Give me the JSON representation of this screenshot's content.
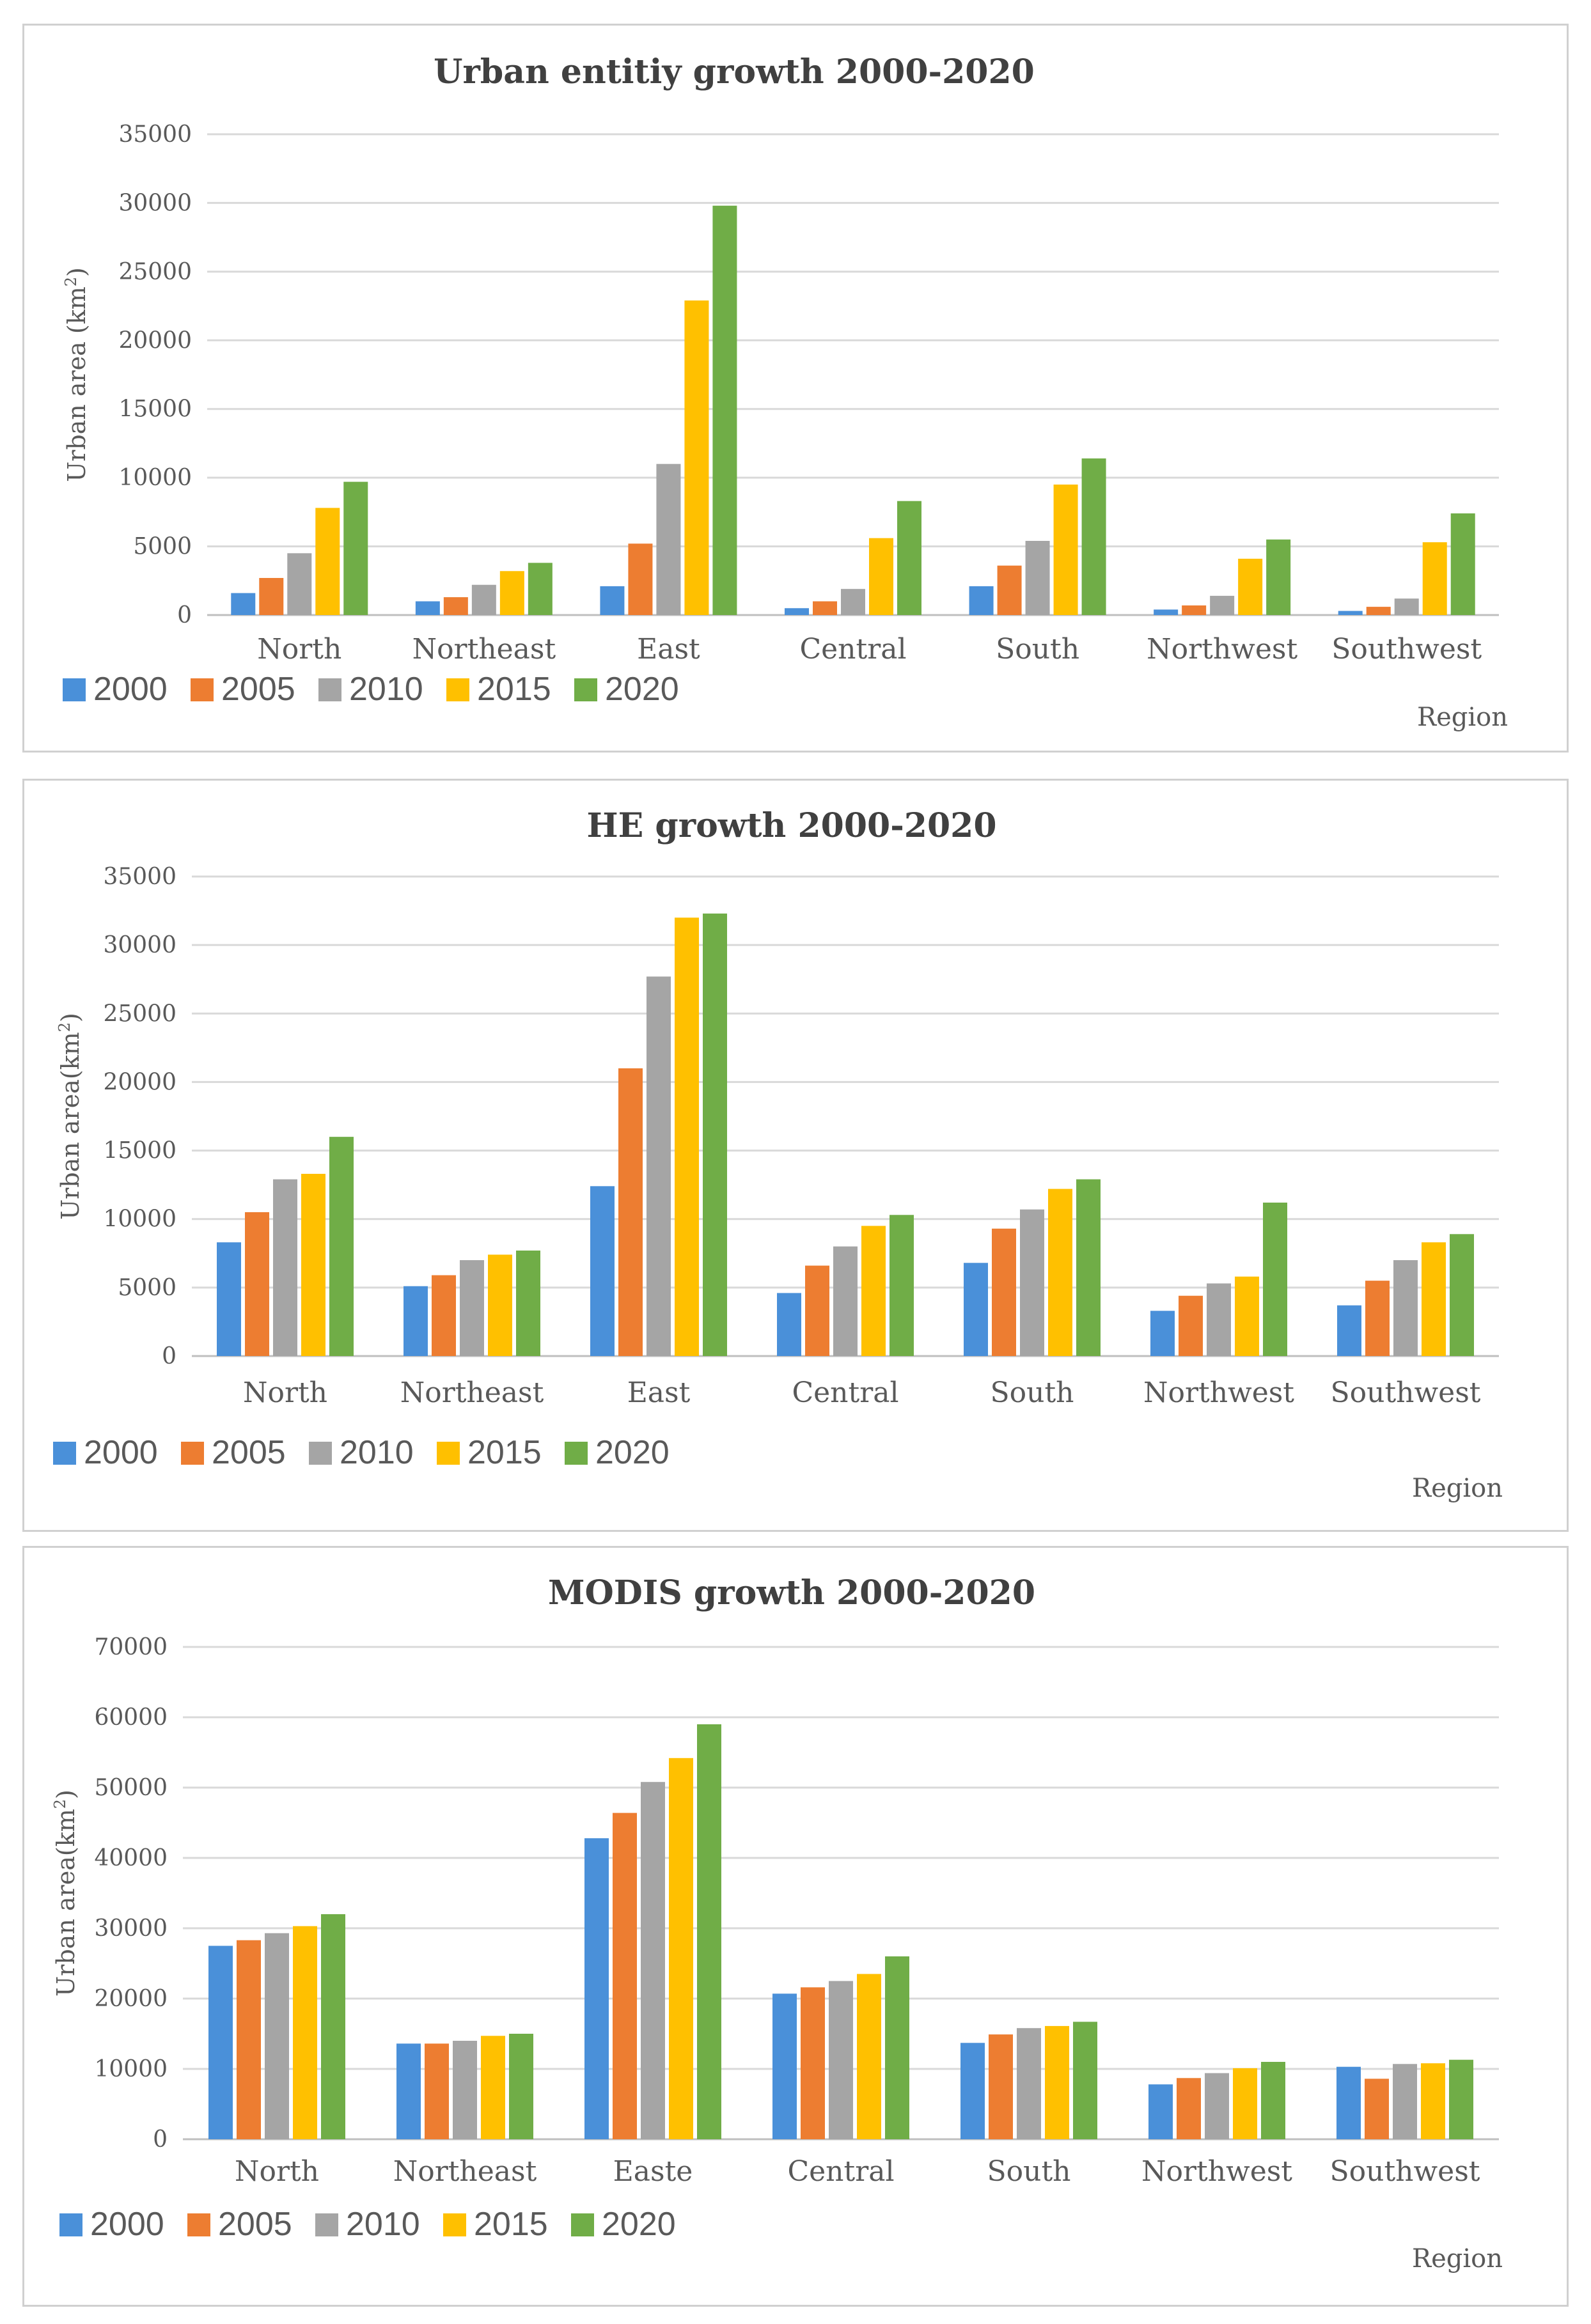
{
  "chart_data": [
    {
      "type": "bar",
      "title": "Urban entitiy growth 2000-2020",
      "ylabel": "Urban area (km",
      "ylabel_sup": "2",
      "ylabel_close": ")",
      "xlabel": "Region",
      "ylim": [
        0,
        35000
      ],
      "yticks": [
        "0",
        "5000",
        "10000",
        "15000",
        "20000",
        "25000",
        "30000",
        "35000"
      ],
      "categories": [
        "North",
        "Northeast",
        "East",
        "Central",
        "South",
        "Northwest",
        "Southwest"
      ],
      "series": [
        {
          "name": "2000",
          "color": "#4a90d9",
          "values": [
            1600,
            1000,
            2100,
            500,
            2100,
            400,
            300
          ]
        },
        {
          "name": "2005",
          "color": "#ed7d31",
          "values": [
            2700,
            1300,
            5200,
            1000,
            3600,
            700,
            600
          ]
        },
        {
          "name": "2010",
          "color": "#a5a5a5",
          "values": [
            4500,
            2200,
            11000,
            1900,
            5400,
            1400,
            1200
          ]
        },
        {
          "name": "2015",
          "color": "#ffc000",
          "values": [
            7800,
            3200,
            22900,
            5600,
            9500,
            4100,
            5300
          ]
        },
        {
          "name": "2020",
          "color": "#70ad47",
          "values": [
            9700,
            3800,
            29800,
            8300,
            11400,
            5500,
            7400
          ]
        }
      ]
    },
    {
      "type": "bar",
      "title": "HE growth 2000-2020",
      "ylabel": "Urban area(km",
      "ylabel_sup": "2",
      "ylabel_close": ")",
      "xlabel": "Region",
      "ylim": [
        0,
        35000
      ],
      "yticks": [
        "0",
        "5000",
        "10000",
        "15000",
        "20000",
        "25000",
        "30000",
        "35000"
      ],
      "categories": [
        "North",
        "Northeast",
        "East",
        "Central",
        "South",
        "Northwest",
        "Southwest"
      ],
      "series": [
        {
          "name": "2000",
          "color": "#4a90d9",
          "values": [
            8300,
            5100,
            12400,
            4600,
            6800,
            3300,
            3700
          ]
        },
        {
          "name": "2005",
          "color": "#ed7d31",
          "values": [
            10500,
            5900,
            21000,
            6600,
            9300,
            4400,
            5500
          ]
        },
        {
          "name": "2010",
          "color": "#a5a5a5",
          "values": [
            12900,
            7000,
            27700,
            8000,
            10700,
            5300,
            7000
          ]
        },
        {
          "name": "2015",
          "color": "#ffc000",
          "values": [
            13300,
            7400,
            32000,
            9500,
            12200,
            5800,
            8300
          ]
        },
        {
          "name": "2020",
          "color": "#70ad47",
          "values": [
            16000,
            7700,
            32300,
            10300,
            12900,
            11200,
            8900
          ]
        }
      ]
    },
    {
      "type": "bar",
      "title": "MODIS growth 2000-2020",
      "ylabel": "Urban area(km",
      "ylabel_sup": "2",
      "ylabel_close": ")",
      "xlabel": "Region",
      "ylim": [
        0,
        70000
      ],
      "yticks": [
        "0",
        "10000",
        "20000",
        "30000",
        "40000",
        "50000",
        "60000",
        "70000"
      ],
      "categories": [
        "North",
        "Northeast",
        "Easte",
        "Central",
        "South",
        "Northwest",
        "Southwest"
      ],
      "series": [
        {
          "name": "2000",
          "color": "#4a90d9",
          "values": [
            27500,
            13600,
            42800,
            20700,
            13700,
            7800,
            10300
          ]
        },
        {
          "name": "2005",
          "color": "#ed7d31",
          "values": [
            28300,
            13600,
            46400,
            21600,
            14900,
            8700,
            8600
          ]
        },
        {
          "name": "2010",
          "color": "#a5a5a5",
          "values": [
            29300,
            14000,
            50800,
            22500,
            15800,
            9400,
            10700
          ]
        },
        {
          "name": "2015",
          "color": "#ffc000",
          "values": [
            30300,
            14700,
            54200,
            23500,
            16100,
            10100,
            10800
          ]
        },
        {
          "name": "2020",
          "color": "#70ad47",
          "values": [
            32000,
            15000,
            59000,
            26000,
            16700,
            11000,
            11300
          ]
        }
      ]
    }
  ]
}
